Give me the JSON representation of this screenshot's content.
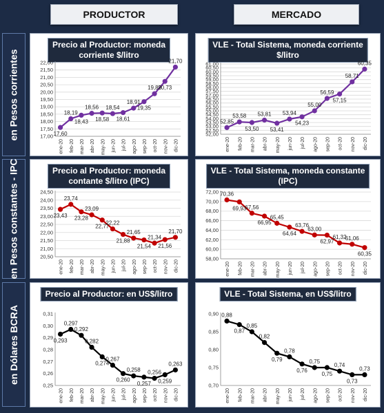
{
  "headers": {
    "left": "PRODUCTOR",
    "right": "MERCADO"
  },
  "rows": [
    "en Pesos corrientes",
    "en Pesos constantes - IPC",
    "en Dólares BCRA"
  ],
  "chart_data": [
    {
      "id": "p1",
      "type": "line",
      "title_lines": [
        "Precio al Productor: moneda",
        "corriente $/litro"
      ],
      "color": "#7030a0",
      "categories": [
        "ene-20",
        "feb-20",
        "mar-20",
        "abr-20",
        "may-20",
        "jun-20",
        "jul-20",
        "ago-20",
        "sep-20",
        "oct-20",
        "nov-20",
        "dic-20"
      ],
      "values": [
        17.6,
        18.19,
        18.43,
        18.56,
        18.58,
        18.54,
        18.61,
        18.91,
        19.35,
        19.89,
        20.73,
        21.7
      ],
      "labels": [
        "17,60",
        "18,19",
        "18,43",
        "18,56",
        "18,58",
        "18,54",
        "18,61",
        "18,91",
        "19,35",
        "19,89",
        "20,73",
        "21,70"
      ],
      "label_pos": [
        "b",
        "a",
        "b",
        "a",
        "b",
        "a",
        "b",
        "a",
        "b",
        "a",
        "b",
        "a"
      ],
      "ylim": [
        17,
        22
      ],
      "ystep": 0.5,
      "yticks": [
        "17,00",
        "17,50",
        "18,00",
        "18,50",
        "19,00",
        "19,50",
        "20,00",
        "20,50",
        "21,00",
        "21,50",
        "22,00"
      ],
      "grid": true
    },
    {
      "id": "m1",
      "type": "line",
      "title_lines": [
        "VLE - Total Sistema, moneda corriente",
        "$/litro"
      ],
      "color": "#7030a0",
      "categories": [
        "ene-20",
        "feb-20",
        "mar-20",
        "abr-20",
        "may-20",
        "jun-20",
        "jul-20",
        "ago-20",
        "sep-20",
        "oct-20",
        "nov-20",
        "dic-20"
      ],
      "values": [
        52.85,
        53.58,
        53.5,
        53.81,
        53.41,
        53.94,
        54.23,
        55.0,
        56.59,
        57.15,
        58.71,
        60.35
      ],
      "labels": [
        "52,85",
        "53,58",
        "53,50",
        "53,81",
        "53,41",
        "53,94",
        "54,23",
        "55,00",
        "56,59",
        "57,15",
        "58,71",
        "60,35"
      ],
      "label_pos": [
        "a",
        "a",
        "b",
        "a",
        "b",
        "a",
        "b",
        "a",
        "a",
        "b",
        "a",
        "a"
      ],
      "ylim": [
        52,
        61
      ],
      "ystep": 0.5,
      "yticks": [
        "52,00",
        "52,50",
        "53,00",
        "53,50",
        "54,00",
        "54,50",
        "55,00",
        "55,50",
        "56,00",
        "56,50",
        "57,00",
        "57,50",
        "58,00",
        "58,50",
        "59,00",
        "59,50",
        "60,00",
        "60,50",
        "61,00"
      ],
      "grid": true
    },
    {
      "id": "p2",
      "type": "line",
      "title_lines": [
        "Precio al Productor: moneda",
        "contante $/litro (IPC)"
      ],
      "color": "#c00000",
      "categories": [
        "ene-20",
        "feb-20",
        "mar-20",
        "abr-20",
        "may-20",
        "jun-20",
        "jul-20",
        "ago-20",
        "sep-20",
        "oct-20",
        "nov-20",
        "dic-20"
      ],
      "values": [
        23.43,
        23.74,
        23.28,
        23.09,
        22.77,
        22.22,
        21.88,
        21.65,
        21.54,
        21.34,
        21.56,
        21.7
      ],
      "labels": [
        "23,43",
        "23,74",
        "23,28",
        "23,09",
        "22,77",
        "22,22",
        "21,88",
        "21,65",
        "21,54",
        "21,34",
        "21,56",
        "21,70"
      ],
      "label_pos": [
        "b",
        "a",
        "b",
        "a",
        "b",
        "a",
        "b",
        "a",
        "b",
        "a",
        "b",
        "a"
      ],
      "ylim": [
        20.5,
        24.5
      ],
      "ystep": 0.5,
      "yticks": [
        "20,50",
        "21,00",
        "21,50",
        "22,00",
        "22,50",
        "23,00",
        "23,50",
        "24,00",
        "24,50"
      ],
      "grid": true
    },
    {
      "id": "m2",
      "type": "line",
      "title_lines": [
        "VLE - Total Sistema, moneda constante",
        "(IPC)"
      ],
      "color": "#c00000",
      "categories": [
        "ene-20",
        "feb-20",
        "mar-20",
        "abr-20",
        "may-20",
        "jun-20",
        "jul-20",
        "ago-20",
        "sep-20",
        "oct-20",
        "nov-20",
        "dic-20"
      ],
      "values": [
        70.36,
        69.93,
        67.56,
        66.95,
        65.45,
        64.64,
        63.76,
        63.0,
        62.97,
        61.32,
        61.06,
        60.35
      ],
      "labels": [
        "70,36",
        "69,93",
        "67,56",
        "66,95",
        "65,45",
        "64,64",
        "63,76",
        "63,00",
        "62,97",
        "61,32",
        "61,06",
        "60,35"
      ],
      "label_pos": [
        "a",
        "b",
        "a",
        "b",
        "a",
        "b",
        "a",
        "a",
        "b",
        "a",
        "a",
        "b"
      ],
      "ylim": [
        58,
        72
      ],
      "ystep": 2,
      "yticks": [
        "58,00",
        "60,00",
        "62,00",
        "64,00",
        "66,00",
        "68,00",
        "70,00",
        "72,00"
      ],
      "grid": true
    },
    {
      "id": "p3",
      "type": "line",
      "title_lines": [
        "Precio al Productor: en US$/litro"
      ],
      "color": "#000000",
      "categories": [
        "ene-20",
        "feb-20",
        "mar-20",
        "abr-20",
        "may-20",
        "jun-20",
        "jul-20",
        "ago-20",
        "sep-20",
        "oct-20",
        "nov-20",
        "dic-20"
      ],
      "values": [
        0.293,
        0.297,
        0.292,
        0.282,
        0.274,
        0.267,
        0.26,
        0.258,
        0.257,
        0.256,
        0.259,
        0.263
      ],
      "labels": [
        "0,293",
        "0,297",
        "0,292",
        "0,282",
        "0,274",
        "0,267",
        "0,260",
        "0,258",
        "0,257",
        "0,256",
        "0,259",
        "0,263"
      ],
      "label_pos": [
        "b",
        "a",
        "a",
        "a",
        "b",
        "a",
        "b",
        "a",
        "b",
        "a",
        "b",
        "a"
      ],
      "ylim": [
        0.25,
        0.31
      ],
      "ystep": 0.01,
      "yticks": [
        "0,25",
        "0,26",
        "0,27",
        "0,28",
        "0,29",
        "0,30",
        "0,31"
      ],
      "grid": false
    },
    {
      "id": "m3",
      "type": "line",
      "title_lines": [
        "VLE - Total Sistema, en US$/litro"
      ],
      "color": "#000000",
      "categories": [
        "ene-20",
        "feb-20",
        "mar-20",
        "abr-20",
        "may-20",
        "jun-20",
        "jul-20",
        "ago-20",
        "sep-20",
        "oct-20",
        "nov-20",
        "dic-20"
      ],
      "values": [
        0.88,
        0.87,
        0.85,
        0.82,
        0.79,
        0.78,
        0.76,
        0.75,
        0.75,
        0.74,
        0.73,
        0.73
      ],
      "labels": [
        "0,88",
        "0,87",
        "0,85",
        "0,82",
        "0,79",
        "0,78",
        "0,76",
        "0,75",
        "0,75",
        "0,74",
        "0,73",
        "0,73"
      ],
      "label_pos": [
        "a",
        "b",
        "a",
        "a",
        "b",
        "a",
        "b",
        "a",
        "b",
        "a",
        "b",
        "a"
      ],
      "ylim": [
        0.7,
        0.9
      ],
      "ystep": 0.05,
      "yticks": [
        "0,70",
        "0,75",
        "0,80",
        "0,85",
        "0,90"
      ],
      "grid": false
    }
  ]
}
